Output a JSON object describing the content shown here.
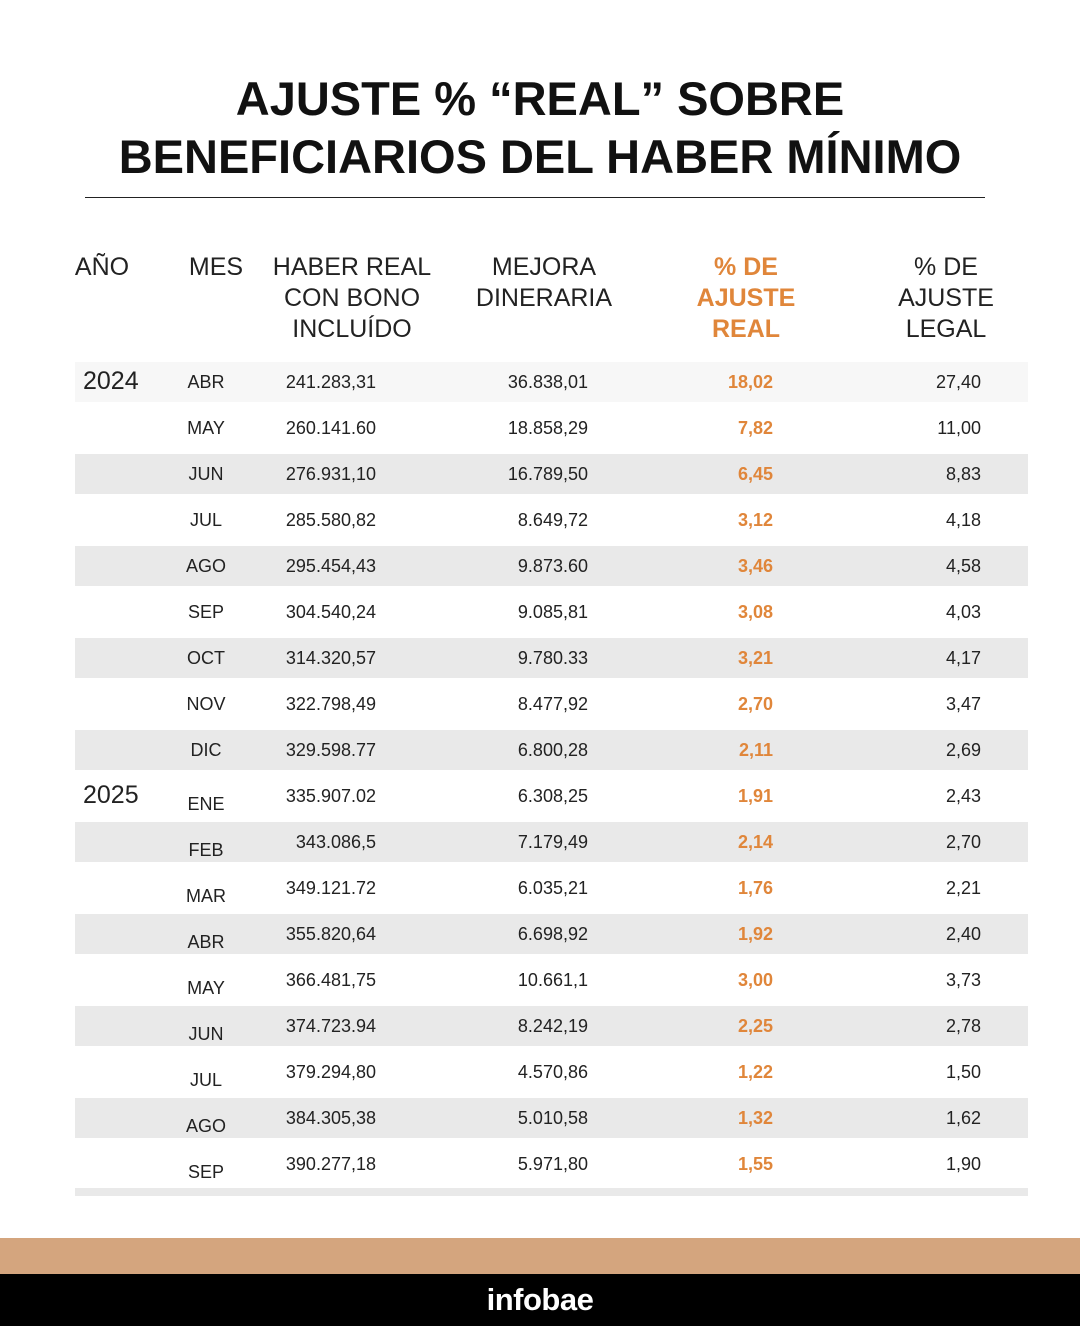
{
  "title": {
    "line1": "AJUSTE % “REAL” SOBRE",
    "line2": "BENEFICIARIOS DEL HABER MÍNIMO"
  },
  "headers": {
    "anio": "AÑO",
    "mes": "MES",
    "haber": "HABER REAL\nCON BONO\nINCLUÍDO",
    "mejora": "MEJORA\nDINERARIA",
    "ajuste_real": "% DE\nAJUSTE\nREAL",
    "ajuste_legal": "% DE\nAJUSTE\nLEGAL"
  },
  "colors": {
    "accent": "#e0863a",
    "stripe": "#d4a57e",
    "band": "#e9e9e9"
  },
  "rows": [
    {
      "year": "2024",
      "mes": "ABR",
      "haber": "241.283,31",
      "mejora": "36.838,01",
      "real": "18,02",
      "legal": "27,40"
    },
    {
      "year": "",
      "mes": "MAY",
      "haber": "260.141.60",
      "mejora": "18.858,29",
      "real": "7,82",
      "legal": "11,00"
    },
    {
      "year": "",
      "mes": "JUN",
      "haber": "276.931,10",
      "mejora": "16.789,50",
      "real": "6,45",
      "legal": "8,83"
    },
    {
      "year": "",
      "mes": "JUL",
      "haber": "285.580,82",
      "mejora": "8.649,72",
      "real": "3,12",
      "legal": "4,18"
    },
    {
      "year": "",
      "mes": "AGO",
      "haber": "295.454,43",
      "mejora": "9.873.60",
      "real": "3,46",
      "legal": "4,58"
    },
    {
      "year": "",
      "mes": "SEP",
      "haber": "304.540,24",
      "mejora": "9.085,81",
      "real": "3,08",
      "legal": "4,03"
    },
    {
      "year": "",
      "mes": "OCT",
      "haber": "314.320,57",
      "mejora": "9.780.33",
      "real": "3,21",
      "legal": "4,17"
    },
    {
      "year": "",
      "mes": "NOV",
      "haber": "322.798,49",
      "mejora": "8.477,92",
      "real": "2,70",
      "legal": "3,47"
    },
    {
      "year": "",
      "mes": "DIC",
      "haber": "329.598.77",
      "mejora": "6.800,28",
      "real": "2,11",
      "legal": "2,69"
    },
    {
      "year": "2025",
      "mes": "ENE",
      "haber": "335.907.02",
      "mejora": "6.308,25",
      "real": "1,91",
      "legal": "2,43"
    },
    {
      "year": "",
      "mes": "FEB",
      "haber": "343.086,5",
      "mejora": "7.179,49",
      "real": "2,14",
      "legal": "2,70"
    },
    {
      "year": "",
      "mes": "MAR",
      "haber": "349.121.72",
      "mejora": "6.035,21",
      "real": "1,76",
      "legal": "2,21"
    },
    {
      "year": "",
      "mes": "ABR",
      "haber": "355.820,64",
      "mejora": "6.698,92",
      "real": "1,92",
      "legal": "2,40"
    },
    {
      "year": "",
      "mes": "MAY",
      "haber": "366.481,75",
      "mejora": "10.661,1",
      "real": "3,00",
      "legal": "3,73"
    },
    {
      "year": "",
      "mes": "JUN",
      "haber": "374.723.94",
      "mejora": "8.242,19",
      "real": "2,25",
      "legal": "2,78"
    },
    {
      "year": "",
      "mes": "JUL",
      "haber": "379.294,80",
      "mejora": "4.570,86",
      "real": "1,22",
      "legal": "1,50"
    },
    {
      "year": "",
      "mes": "AGO",
      "haber": "384.305,38",
      "mejora": "5.010,58",
      "real": "1,32",
      "legal": "1,62"
    },
    {
      "year": "",
      "mes": "SEP",
      "haber": "390.277,18",
      "mejora": "5.971,80",
      "real": "1,55",
      "legal": "1,90"
    }
  ],
  "footer": {
    "logo": "infobae"
  }
}
